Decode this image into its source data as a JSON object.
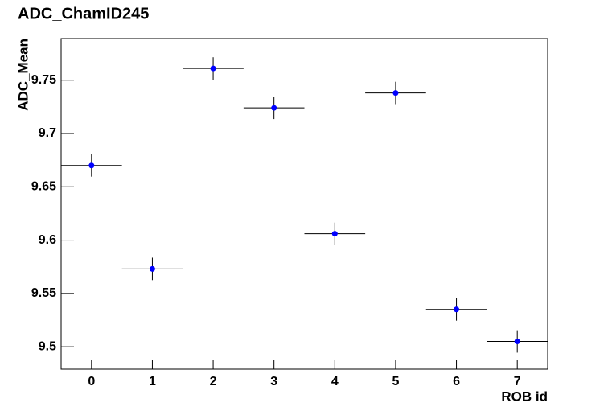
{
  "chart_data": {
    "type": "scatter",
    "title": "ADC_ChamID245",
    "x_label": "ROB id",
    "y_label": "ADC_Mean",
    "x": [
      0,
      1,
      2,
      3,
      4,
      5,
      6,
      7
    ],
    "values": [
      9.67,
      9.573,
      9.761,
      9.724,
      9.606,
      9.738,
      9.535,
      9.505
    ],
    "y_errors": [
      0.0105,
      0.0105,
      0.0105,
      0.0105,
      0.0105,
      0.0105,
      0.0105,
      0.0105
    ],
    "x_errors": [
      0.5,
      0.5,
      0.5,
      0.5,
      0.5,
      0.5,
      0.5,
      0.5
    ],
    "color": "#0000ff",
    "xlim": [
      -0.5,
      7.5
    ],
    "xticks": [
      0,
      1,
      2,
      3,
      4,
      5,
      6,
      7
    ],
    "ylim": [
      9.479,
      9.789
    ],
    "yticks": [
      9.5,
      9.55,
      9.6,
      9.65,
      9.7,
      9.75
    ],
    "grid": false
  }
}
